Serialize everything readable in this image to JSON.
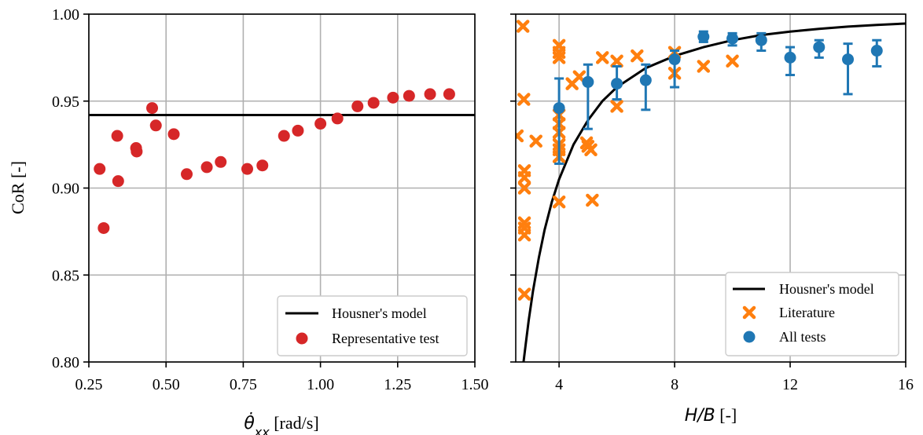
{
  "figure": {
    "left_panel": {
      "xlabel_symbol": "θ̇",
      "xlabel_sub": "xx",
      "xlabel_unit": " [rad/s]",
      "ylabel": "CoR [-]"
    },
    "right_panel": {
      "xlabel_symbol": "H/B",
      "xlabel_unit": " [-]"
    }
  },
  "colors": {
    "housner": "#000000",
    "representative": "#d62728",
    "literature": "#ff7f0e",
    "all_tests": "#1f77b4",
    "grid": "#b0b0b0"
  },
  "chart_data": [
    {
      "type": "scatter",
      "xlabel": "θ̇xx [rad/s]",
      "ylabel": "CoR [-]",
      "xlim": [
        0.25,
        1.5
      ],
      "ylim": [
        0.8,
        1.0
      ],
      "xticks": [
        "0.25",
        "0.50",
        "0.75",
        "1.00",
        "1.25",
        "1.50"
      ],
      "yticks": [
        "0.80",
        "0.85",
        "0.90",
        "0.95",
        "1.00"
      ],
      "grid": true,
      "legend_position": "lower-right",
      "series": [
        {
          "name": "Housner's model",
          "kind": "hline",
          "y": 0.942
        },
        {
          "name": "Representative test",
          "kind": "points",
          "points": [
            [
              0.285,
              0.911
            ],
            [
              0.298,
              0.877
            ],
            [
              0.342,
              0.93
            ],
            [
              0.345,
              0.904
            ],
            [
              0.403,
              0.923
            ],
            [
              0.405,
              0.921
            ],
            [
              0.455,
              0.946
            ],
            [
              0.467,
              0.936
            ],
            [
              0.525,
              0.931
            ],
            [
              0.567,
              0.908
            ],
            [
              0.632,
              0.912
            ],
            [
              0.677,
              0.915
            ],
            [
              0.763,
              0.911
            ],
            [
              0.812,
              0.913
            ],
            [
              0.882,
              0.93
            ],
            [
              0.927,
              0.933
            ],
            [
              1.0,
              0.937
            ],
            [
              1.055,
              0.94
            ],
            [
              1.12,
              0.947
            ],
            [
              1.172,
              0.949
            ],
            [
              1.235,
              0.952
            ],
            [
              1.287,
              0.953
            ],
            [
              1.355,
              0.954
            ],
            [
              1.417,
              0.954
            ]
          ]
        }
      ]
    },
    {
      "type": "scatter",
      "xlabel": "H/B [-]",
      "ylabel": "CoR [-]",
      "xlim": [
        2.5,
        16
      ],
      "ylim": [
        0.8,
        1.0
      ],
      "xticks": [
        "4",
        "8",
        "12",
        "16"
      ],
      "yticks": [
        "0.80",
        "0.85",
        "0.90",
        "0.95",
        "1.00"
      ],
      "grid": true,
      "legend_position": "lower-right",
      "series": [
        {
          "name": "Housner's model",
          "kind": "line",
          "points": [
            [
              2.77,
              0.8
            ],
            [
              2.85,
              0.811
            ],
            [
              2.95,
              0.824
            ],
            [
              3.1,
              0.841
            ],
            [
              3.3,
              0.86
            ],
            [
              3.5,
              0.876
            ],
            [
              3.75,
              0.892
            ],
            [
              4.0,
              0.905
            ],
            [
              4.5,
              0.925
            ],
            [
              5.0,
              0.939
            ],
            [
              5.5,
              0.95
            ],
            [
              6.0,
              0.958
            ],
            [
              7.0,
              0.969
            ],
            [
              8.0,
              0.976
            ],
            [
              9.0,
              0.981
            ],
            [
              10.0,
              0.985
            ],
            [
              11.0,
              0.988
            ],
            [
              12.0,
              0.99
            ],
            [
              13.0,
              0.9915
            ],
            [
              14.0,
              0.9928
            ],
            [
              15.0,
              0.9938
            ],
            [
              16.0,
              0.9946
            ]
          ]
        },
        {
          "name": "Literature",
          "kind": "points",
          "points": [
            [
              2.55,
              0.93
            ],
            [
              2.75,
              0.993
            ],
            [
              2.78,
              0.951
            ],
            [
              2.8,
              0.91
            ],
            [
              2.8,
              0.906
            ],
            [
              2.8,
              0.9
            ],
            [
              2.8,
              0.88
            ],
            [
              2.8,
              0.877
            ],
            [
              2.8,
              0.873
            ],
            [
              2.8,
              0.839
            ],
            [
              3.2,
              0.927
            ],
            [
              4.0,
              0.982
            ],
            [
              4.0,
              0.978
            ],
            [
              4.0,
              0.975
            ],
            [
              4.0,
              0.942
            ],
            [
              4.0,
              0.937
            ],
            [
              4.0,
              0.932
            ],
            [
              4.0,
              0.925
            ],
            [
              4.0,
              0.922
            ],
            [
              4.0,
              0.918
            ],
            [
              4.0,
              0.892
            ],
            [
              4.45,
              0.96
            ],
            [
              4.7,
              0.964
            ],
            [
              4.95,
              0.926
            ],
            [
              5.0,
              0.924
            ],
            [
              5.1,
              0.922
            ],
            [
              5.15,
              0.893
            ],
            [
              5.5,
              0.975
            ],
            [
              6.0,
              0.973
            ],
            [
              6.0,
              0.947
            ],
            [
              6.7,
              0.976
            ],
            [
              8.0,
              0.978
            ],
            [
              8.0,
              0.966
            ],
            [
              9.0,
              0.97
            ],
            [
              10.0,
              0.973
            ]
          ]
        },
        {
          "name": "All tests",
          "kind": "errorbar",
          "points": [
            {
              "x": 4,
              "y": 0.946,
              "lo": 0.914,
              "hi": 0.963
            },
            {
              "x": 5,
              "y": 0.961,
              "lo": 0.934,
              "hi": 0.971
            },
            {
              "x": 6,
              "y": 0.96,
              "lo": 0.951,
              "hi": 0.97
            },
            {
              "x": 7,
              "y": 0.962,
              "lo": 0.945,
              "hi": 0.971
            },
            {
              "x": 8,
              "y": 0.974,
              "lo": 0.958,
              "hi": 0.979
            },
            {
              "x": 9,
              "y": 0.987,
              "lo": 0.984,
              "hi": 0.99
            },
            {
              "x": 10,
              "y": 0.986,
              "lo": 0.982,
              "hi": 0.989
            },
            {
              "x": 11,
              "y": 0.985,
              "lo": 0.979,
              "hi": 0.989
            },
            {
              "x": 12,
              "y": 0.975,
              "lo": 0.965,
              "hi": 0.981
            },
            {
              "x": 13,
              "y": 0.981,
              "lo": 0.975,
              "hi": 0.985
            },
            {
              "x": 14,
              "y": 0.974,
              "lo": 0.954,
              "hi": 0.983
            },
            {
              "x": 15,
              "y": 0.979,
              "lo": 0.97,
              "hi": 0.985
            }
          ]
        }
      ]
    }
  ]
}
